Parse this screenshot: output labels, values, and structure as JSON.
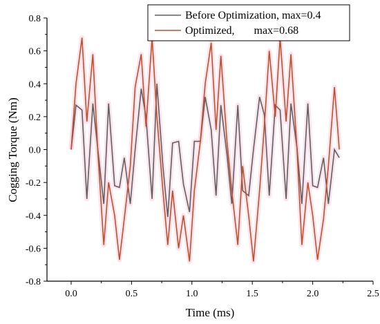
{
  "chart_data": {
    "type": "line",
    "xlabel": "Time (ms)",
    "ylabel": "Cogging Torque (Nm)",
    "xlim": [
      -0.2,
      2.5
    ],
    "ylim": [
      -0.8,
      0.8
    ],
    "x_ticks": [
      "0.0",
      "0.5",
      "1.0",
      "1.5",
      "2.0",
      "2.5"
    ],
    "x_tick_values": [
      0.0,
      0.5,
      1.0,
      1.5,
      2.0,
      2.5
    ],
    "y_ticks": [
      "0.8",
      "0.6",
      "0.4",
      "0.2",
      "0.0",
      "-0.2",
      "-0.4",
      "-0.6",
      "-0.8"
    ],
    "y_tick_values": [
      0.8,
      0.6,
      0.4,
      0.2,
      0.0,
      -0.2,
      -0.4,
      -0.6,
      -0.8
    ],
    "legend_position": "top-right",
    "grid": false,
    "series": [
      {
        "name": "Before Optimization, max=0.4",
        "color": "#606060",
        "x": [
          0.0,
          0.04,
          0.09,
          0.13,
          0.18,
          0.22,
          0.27,
          0.31,
          0.36,
          0.4,
          0.44,
          0.49,
          0.53,
          0.58,
          0.62,
          0.67,
          0.71,
          0.76,
          0.8,
          0.84,
          0.89,
          0.93,
          0.98,
          1.02,
          1.07,
          1.11,
          1.16,
          1.2,
          1.24,
          1.29,
          1.33,
          1.38,
          1.42,
          1.47,
          1.51,
          1.56,
          1.6,
          1.64,
          1.69,
          1.73,
          1.78,
          1.82,
          1.87,
          1.91,
          1.96,
          2.0,
          2.04,
          2.09,
          2.13,
          2.18,
          2.22
        ],
        "y": [
          0.0,
          0.27,
          0.24,
          -0.3,
          0.28,
          0.01,
          -0.33,
          0.28,
          -0.22,
          -0.23,
          -0.05,
          -0.33,
          0.0,
          0.37,
          0.2,
          -0.3,
          0.4,
          -0.1,
          -0.41,
          0.04,
          0.05,
          -0.21,
          -0.38,
          0.05,
          0.05,
          0.32,
          0.12,
          -0.28,
          0.27,
          -0.03,
          -0.33,
          0.27,
          -0.25,
          -0.28,
          0.0,
          0.32,
          0.21,
          -0.28,
          0.27,
          0.24,
          -0.3,
          0.28,
          0.01,
          -0.33,
          0.28,
          -0.22,
          -0.23,
          -0.05,
          -0.33,
          0.0,
          -0.05
        ]
      },
      {
        "name": "Optimized,       max=0.68",
        "color": "#c0502a",
        "x": [
          0.0,
          0.04,
          0.09,
          0.13,
          0.18,
          0.22,
          0.27,
          0.31,
          0.36,
          0.4,
          0.44,
          0.49,
          0.53,
          0.58,
          0.62,
          0.67,
          0.71,
          0.76,
          0.8,
          0.84,
          0.89,
          0.93,
          0.98,
          1.02,
          1.07,
          1.11,
          1.16,
          1.2,
          1.24,
          1.29,
          1.33,
          1.38,
          1.42,
          1.47,
          1.51,
          1.56,
          1.6,
          1.64,
          1.69,
          1.73,
          1.78,
          1.82,
          1.87,
          1.91,
          1.96,
          2.0,
          2.04,
          2.09,
          2.13,
          2.18,
          2.22
        ],
        "y": [
          0.0,
          0.4,
          0.68,
          0.17,
          0.58,
          0.0,
          -0.58,
          -0.2,
          -0.4,
          -0.67,
          -0.42,
          -0.1,
          0.38,
          0.58,
          0.14,
          0.68,
          0.2,
          -0.25,
          -0.58,
          -0.25,
          -0.6,
          -0.4,
          -0.68,
          -0.25,
          0.05,
          0.4,
          0.65,
          0.12,
          0.57,
          0.05,
          -0.25,
          -0.58,
          -0.1,
          -0.4,
          -0.68,
          -0.25,
          0.15,
          0.6,
          0.2,
          0.68,
          0.17,
          0.58,
          0.0,
          -0.58,
          -0.2,
          -0.4,
          -0.67,
          -0.42,
          -0.1,
          0.38,
          0.0
        ]
      }
    ]
  }
}
